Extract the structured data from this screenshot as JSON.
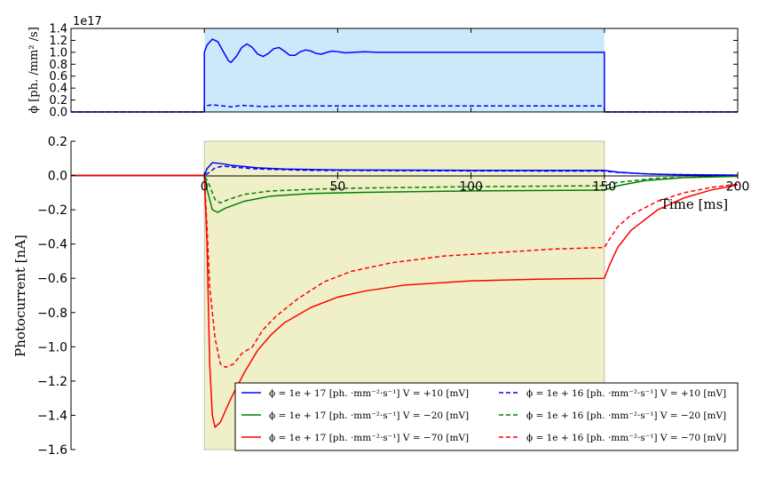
{
  "chart_data": [
    {
      "type": "line",
      "panel": "stimulus",
      "title": "",
      "ylabel": "ϕ [ph. /mm² /s]",
      "offset_text": "1e17",
      "xlim": [
        -50,
        200
      ],
      "ylim": [
        0,
        1.4
      ],
      "yticks": [
        "0.0",
        "0.2",
        "0.4",
        "0.6",
        "0.8",
        "1.0",
        "1.2",
        "1.4"
      ],
      "shaded_interval": [
        0,
        150
      ],
      "shade_color": "#cce9fb",
      "series": [
        {
          "color": "#0000ff",
          "style": "solid",
          "points": [
            [
              -50,
              0
            ],
            [
              0,
              0
            ],
            [
              0,
              1.0
            ],
            [
              1,
              1.12
            ],
            [
              3,
              1.22
            ],
            [
              5,
              1.18
            ],
            [
              7,
              1.02
            ],
            [
              9,
              0.86
            ],
            [
              10,
              0.83
            ],
            [
              12,
              0.93
            ],
            [
              14,
              1.08
            ],
            [
              16,
              1.14
            ],
            [
              18,
              1.08
            ],
            [
              20,
              0.97
            ],
            [
              22,
              0.93
            ],
            [
              24,
              0.98
            ],
            [
              26,
              1.06
            ],
            [
              28,
              1.08
            ],
            [
              30,
              1.02
            ],
            [
              32,
              0.95
            ],
            [
              34,
              0.95
            ],
            [
              36,
              1.01
            ],
            [
              38,
              1.04
            ],
            [
              40,
              1.02
            ],
            [
              42,
              0.98
            ],
            [
              44,
              0.97
            ],
            [
              46,
              1.0
            ],
            [
              48,
              1.02
            ],
            [
              50,
              1.01
            ],
            [
              53,
              0.99
            ],
            [
              56,
              1.0
            ],
            [
              60,
              1.01
            ],
            [
              65,
              1.0
            ],
            [
              70,
              1.0
            ],
            [
              80,
              1.0
            ],
            [
              150,
              1.0
            ],
            [
              150,
              0
            ],
            [
              200,
              0
            ]
          ]
        },
        {
          "color": "#0000ff",
          "style": "dashed",
          "points": [
            [
              -50,
              0
            ],
            [
              0,
              0
            ],
            [
              0,
              0.1
            ],
            [
              3,
              0.12
            ],
            [
              7,
              0.1
            ],
            [
              10,
              0.085
            ],
            [
              14,
              0.11
            ],
            [
              18,
              0.1
            ],
            [
              22,
              0.09
            ],
            [
              30,
              0.1
            ],
            [
              40,
              0.1
            ],
            [
              150,
              0.1
            ],
            [
              150,
              0
            ],
            [
              200,
              0
            ]
          ]
        }
      ]
    },
    {
      "type": "line",
      "panel": "photocurrent",
      "title": "",
      "ylabel": "Photocurrent [nA]",
      "xlabel": "Time [ms]",
      "xlim": [
        -50,
        200
      ],
      "ylim": [
        -1.6,
        0.2
      ],
      "xticks": [
        "0",
        "50",
        "100",
        "150",
        "200"
      ],
      "yticks": [
        "0.2",
        "0.0",
        "−0.2",
        "−0.4",
        "−0.6",
        "−0.8",
        "−1.0",
        "−1.2",
        "−1.4",
        "−1.6"
      ],
      "shaded_interval": [
        0,
        150
      ],
      "shade_color": "#f0f0c8",
      "legend_location": "lower-right",
      "legend": [
        {
          "label": "ϕ = 1e + 17 [ph. ·mm⁻²·s⁻¹] V = +10 [mV]",
          "color": "#0000ff",
          "style": "solid"
        },
        {
          "label": "ϕ = 1e + 16 [ph. ·mm⁻²·s⁻¹] V = +10 [mV]",
          "color": "#0000ff",
          "style": "dashed"
        },
        {
          "label": "ϕ = 1e + 17 [ph. ·mm⁻²·s⁻¹] V = −20 [mV]",
          "color": "#008000",
          "style": "solid"
        },
        {
          "label": "ϕ = 1e + 16 [ph. ·mm⁻²·s⁻¹] V = −20 [mV]",
          "color": "#008000",
          "style": "dashed"
        },
        {
          "label": "ϕ = 1e + 17 [ph. ·mm⁻²·s⁻¹] V = −70 [mV]",
          "color": "#ff0000",
          "style": "solid"
        },
        {
          "label": "ϕ = 1e + 16 [ph. ·mm⁻²·s⁻¹] V = −70 [mV]",
          "color": "#ff0000",
          "style": "dashed"
        }
      ],
      "series": [
        {
          "color": "#0000ff",
          "style": "solid",
          "points": [
            [
              -50,
              0
            ],
            [
              0,
              0
            ],
            [
              1,
              0.04
            ],
            [
              3,
              0.075
            ],
            [
              6,
              0.07
            ],
            [
              10,
              0.06
            ],
            [
              20,
              0.045
            ],
            [
              30,
              0.038
            ],
            [
              50,
              0.033
            ],
            [
              100,
              0.03
            ],
            [
              150,
              0.03
            ],
            [
              155,
              0.02
            ],
            [
              165,
              0.01
            ],
            [
              180,
              0.004
            ],
            [
              200,
              0.002
            ]
          ]
        },
        {
          "color": "#0000ff",
          "style": "dashed",
          "points": [
            [
              -50,
              0
            ],
            [
              0,
              0
            ],
            [
              2,
              0.02
            ],
            [
              4,
              0.045
            ],
            [
              7,
              0.055
            ],
            [
              10,
              0.05
            ],
            [
              20,
              0.038
            ],
            [
              40,
              0.03
            ],
            [
              100,
              0.027
            ],
            [
              150,
              0.026
            ],
            [
              155,
              0.018
            ],
            [
              170,
              0.007
            ],
            [
              200,
              0.002
            ]
          ]
        },
        {
          "color": "#008000",
          "style": "solid",
          "points": [
            [
              -50,
              0
            ],
            [
              0,
              0
            ],
            [
              1,
              -0.08
            ],
            [
              3,
              -0.2
            ],
            [
              5,
              -0.215
            ],
            [
              8,
              -0.19
            ],
            [
              15,
              -0.15
            ],
            [
              25,
              -0.12
            ],
            [
              40,
              -0.105
            ],
            [
              60,
              -0.098
            ],
            [
              100,
              -0.09
            ],
            [
              150,
              -0.085
            ],
            [
              155,
              -0.06
            ],
            [
              165,
              -0.03
            ],
            [
              180,
              -0.012
            ],
            [
              200,
              -0.005
            ]
          ]
        },
        {
          "color": "#008000",
          "style": "dashed",
          "points": [
            [
              -50,
              0
            ],
            [
              0,
              0
            ],
            [
              2,
              -0.06
            ],
            [
              4,
              -0.14
            ],
            [
              6,
              -0.16
            ],
            [
              9,
              -0.14
            ],
            [
              15,
              -0.11
            ],
            [
              25,
              -0.09
            ],
            [
              50,
              -0.075
            ],
            [
              100,
              -0.065
            ],
            [
              150,
              -0.06
            ],
            [
              155,
              -0.04
            ],
            [
              170,
              -0.015
            ],
            [
              200,
              -0.004
            ]
          ]
        },
        {
          "color": "#ff0000",
          "style": "solid",
          "points": [
            [
              -50,
              0
            ],
            [
              0,
              0
            ],
            [
              1,
              -0.4
            ],
            [
              2,
              -1.1
            ],
            [
              3,
              -1.4
            ],
            [
              4,
              -1.47
            ],
            [
              6,
              -1.44
            ],
            [
              10,
              -1.3
            ],
            [
              15,
              -1.15
            ],
            [
              20,
              -1.02
            ],
            [
              25,
              -0.93
            ],
            [
              30,
              -0.86
            ],
            [
              40,
              -0.77
            ],
            [
              50,
              -0.71
            ],
            [
              60,
              -0.675
            ],
            [
              75,
              -0.64
            ],
            [
              100,
              -0.615
            ],
            [
              125,
              -0.605
            ],
            [
              150,
              -0.6
            ],
            [
              152,
              -0.52
            ],
            [
              155,
              -0.42
            ],
            [
              160,
              -0.32
            ],
            [
              170,
              -0.2
            ],
            [
              180,
              -0.13
            ],
            [
              190,
              -0.085
            ],
            [
              200,
              -0.055
            ]
          ]
        },
        {
          "color": "#ff0000",
          "style": "dashed",
          "points": [
            [
              -50,
              0
            ],
            [
              0,
              0
            ],
            [
              1,
              -0.3
            ],
            [
              2,
              -0.65
            ],
            [
              4,
              -0.95
            ],
            [
              6,
              -1.1
            ],
            [
              8,
              -1.12
            ],
            [
              11,
              -1.1
            ],
            [
              14,
              -1.04
            ],
            [
              18,
              -1.0
            ],
            [
              22,
              -0.9
            ],
            [
              27,
              -0.82
            ],
            [
              35,
              -0.72
            ],
            [
              45,
              -0.62
            ],
            [
              55,
              -0.56
            ],
            [
              70,
              -0.51
            ],
            [
              90,
              -0.47
            ],
            [
              110,
              -0.45
            ],
            [
              130,
              -0.43
            ],
            [
              150,
              -0.42
            ],
            [
              152,
              -0.37
            ],
            [
              155,
              -0.3
            ],
            [
              160,
              -0.23
            ],
            [
              170,
              -0.15
            ],
            [
              180,
              -0.1
            ],
            [
              190,
              -0.07
            ],
            [
              200,
              -0.05
            ]
          ]
        }
      ]
    }
  ]
}
